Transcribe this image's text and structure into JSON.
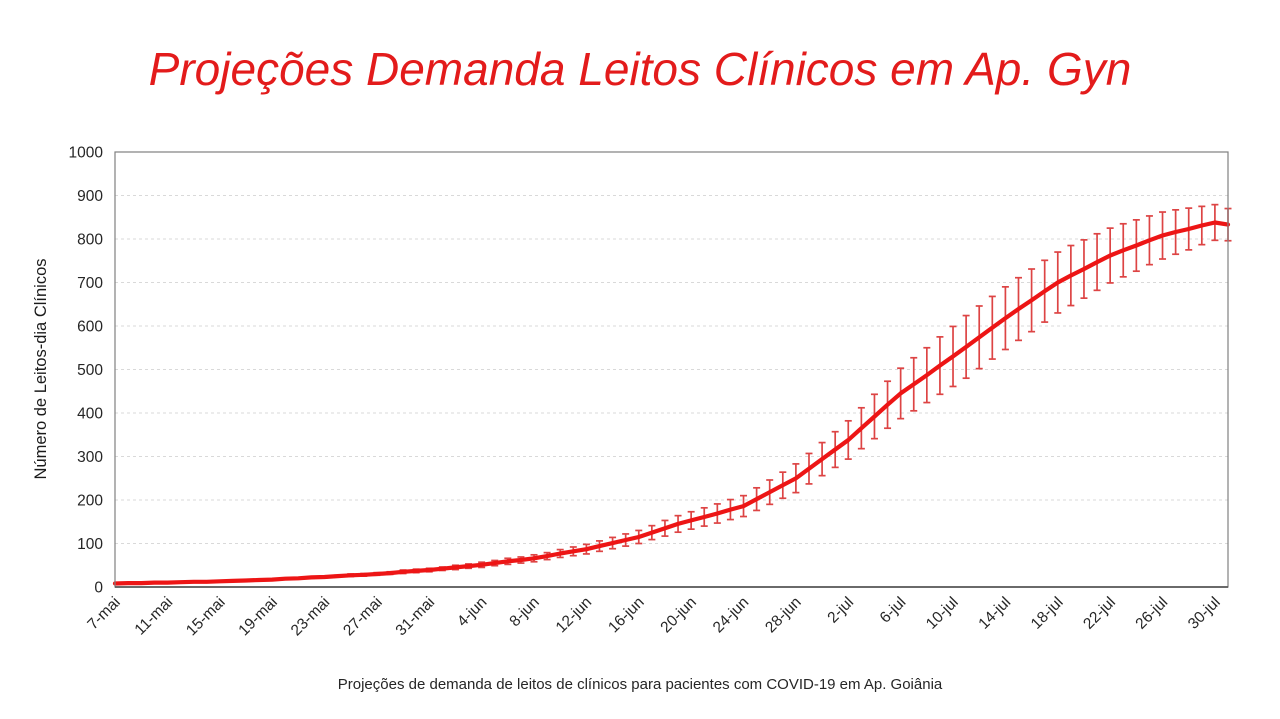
{
  "title": "Projeções Demanda Leitos Clínicos em Ap. Gyn",
  "caption": "Projeções de demanda de leitos de clínicos para pacientes com COVID-19 em Ap. Goiânia",
  "colors": {
    "title": "#e31b1b",
    "series_line": "#ed1515",
    "error_bar": "#dd4444",
    "grid": "#d9d9d9",
    "plot_border": "#808080",
    "axis_line": "#595959",
    "tick_text": "#262626",
    "background": "#ffffff"
  },
  "chart_data": {
    "type": "line",
    "title": "Projeções Demanda Leitos Clínicos em Ap. Gyn",
    "xlabel": "",
    "ylabel": "Número de Leitos-dia Clínicos",
    "ylim": [
      0,
      1000
    ],
    "y_tick_step": 100,
    "y_tick_labels": [
      "0",
      "100",
      "200",
      "300",
      "400",
      "500",
      "600",
      "700",
      "800",
      "900",
      "1000"
    ],
    "grid": "horizontal dashed",
    "legend_position": "none",
    "error_bars": true,
    "x_tick_every_days": 4,
    "x_tick_labels": [
      "7-mai",
      "11-mai",
      "15-mai",
      "19-mai",
      "23-mai",
      "27-mai",
      "31-mai",
      "4-jun",
      "8-jun",
      "12-jun",
      "16-jun",
      "20-jun",
      "24-jun",
      "28-jun",
      "2-jul",
      "6-jul",
      "10-jul",
      "14-jul",
      "18-jul",
      "22-jul",
      "26-jul",
      "30-jul"
    ],
    "x": [
      "7-mai",
      "8-mai",
      "9-mai",
      "10-mai",
      "11-mai",
      "12-mai",
      "13-mai",
      "14-mai",
      "15-mai",
      "16-mai",
      "17-mai",
      "18-mai",
      "19-mai",
      "20-mai",
      "21-mai",
      "22-mai",
      "23-mai",
      "24-mai",
      "25-mai",
      "26-mai",
      "27-mai",
      "28-mai",
      "29-mai",
      "30-mai",
      "31-mai",
      "1-jun",
      "2-jun",
      "3-jun",
      "4-jun",
      "5-jun",
      "6-jun",
      "7-jun",
      "8-jun",
      "9-jun",
      "10-jun",
      "11-jun",
      "12-jun",
      "13-jun",
      "14-jun",
      "15-jun",
      "16-jun",
      "17-jun",
      "18-jun",
      "19-jun",
      "20-jun",
      "21-jun",
      "22-jun",
      "23-jun",
      "24-jun",
      "25-jun",
      "26-jun",
      "27-jun",
      "28-jun",
      "29-jun",
      "30-jun",
      "1-jul",
      "2-jul",
      "3-jul",
      "4-jul",
      "5-jul",
      "6-jul",
      "7-jul",
      "8-jul",
      "9-jul",
      "10-jul",
      "11-jul",
      "12-jul",
      "13-jul",
      "14-jul",
      "15-jul",
      "16-jul",
      "17-jul",
      "18-jul",
      "19-jul",
      "20-jul",
      "21-jul",
      "22-jul",
      "23-jul",
      "24-jul",
      "25-jul",
      "26-jul",
      "27-jul",
      "28-jul",
      "29-jul",
      "30-jul",
      "31-jul"
    ],
    "series": [
      {
        "name": "Projeção de demanda de leitos clínicos",
        "values": [
          8,
          9,
          9,
          10,
          10,
          11,
          12,
          12,
          13,
          14,
          15,
          16,
          17,
          19,
          20,
          22,
          23,
          25,
          27,
          28,
          30,
          32,
          35,
          37,
          39,
          42,
          45,
          48,
          51,
          55,
          59,
          62,
          66,
          71,
          77,
          82,
          87,
          94,
          101,
          108,
          115,
          125,
          135,
          145,
          153,
          161,
          169,
          178,
          186,
          202,
          218,
          234,
          250,
          272,
          294,
          316,
          338,
          365,
          392,
          419,
          445,
          466,
          487,
          509,
          530,
          552,
          574,
          596,
          618,
          639,
          659,
          680,
          700,
          716,
          731,
          747,
          762,
          774,
          785,
          797,
          808,
          816,
          823,
          831,
          838,
          833
        ],
        "error": [
          1,
          1,
          1,
          1,
          1,
          1,
          1,
          1,
          1,
          1,
          1,
          1,
          2,
          2,
          2,
          2,
          2,
          2,
          3,
          3,
          3,
          3,
          4,
          4,
          4,
          4,
          5,
          5,
          6,
          6,
          7,
          7,
          8,
          8,
          9,
          10,
          11,
          12,
          13,
          14,
          15,
          16,
          18,
          19,
          20,
          21,
          22,
          23,
          24,
          26,
          28,
          30,
          33,
          35,
          38,
          41,
          44,
          47,
          51,
          54,
          58,
          61,
          63,
          66,
          69,
          72,
          72,
          72,
          72,
          72,
          72,
          71,
          70,
          69,
          67,
          65,
          63,
          61,
          59,
          56,
          54,
          51,
          48,
          44,
          41,
          37
        ],
        "color": "#ed1515"
      }
    ]
  }
}
